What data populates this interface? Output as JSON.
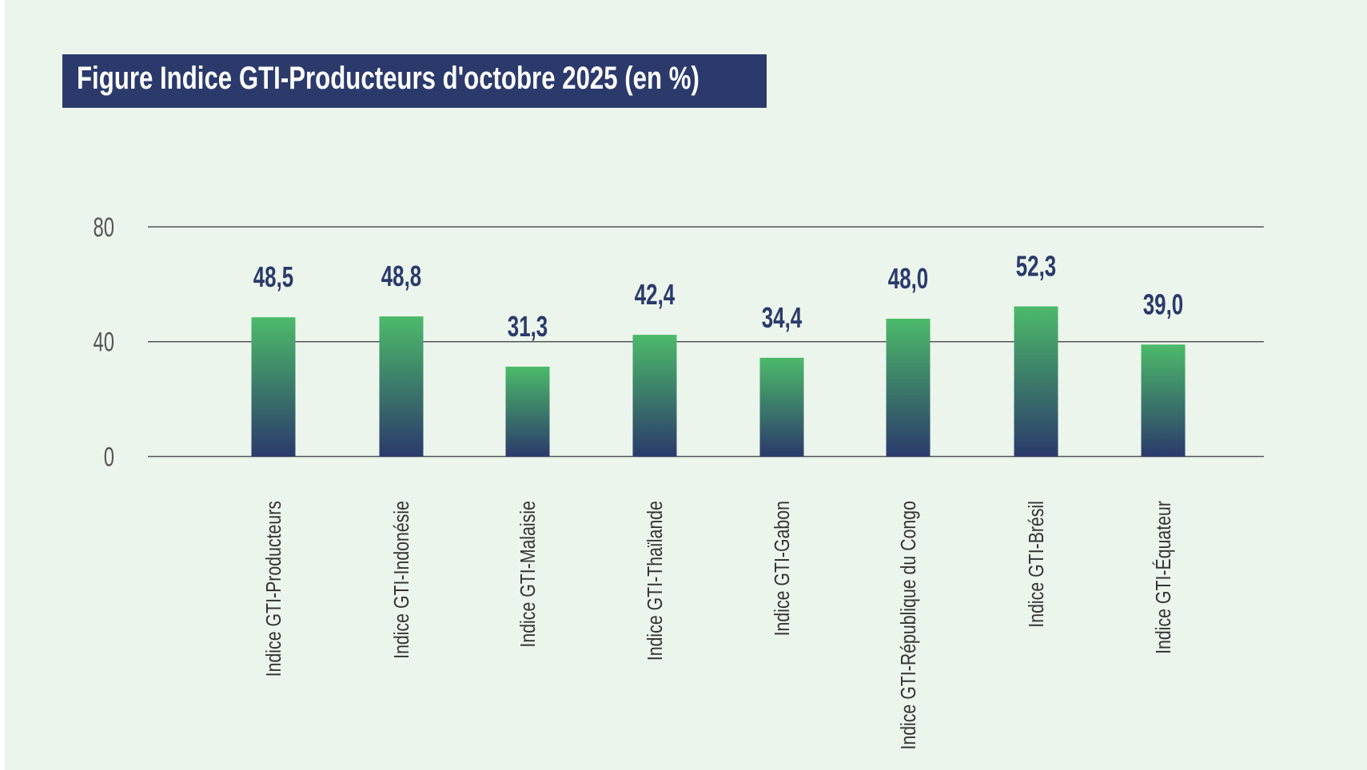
{
  "chart_data": {
    "type": "bar",
    "title": "Figure Indice GTI-Producteurs  d'octobre 2025 (en %)",
    "categories": [
      "Indice GTI-Producteurs",
      "Indice GTI-Indonésie",
      "Indice GTI-Malaisie",
      "Indice GTI-Thaïlande",
      "Indice GTI-Gabon",
      "Indice GTI-République du Congo",
      "Indice GTI-Brésil",
      "Indice GTI-Équateur"
    ],
    "values": [
      48.5,
      48.8,
      31.3,
      42.4,
      34.4,
      48.0,
      52.3,
      39.0
    ],
    "value_labels": [
      "48,5",
      "48,8",
      "31,3",
      "42,4",
      "34,4",
      "48,0",
      "52,3",
      "39,0"
    ],
    "yticks": [
      "0",
      "40",
      "80"
    ],
    "ytick_values": [
      0,
      40,
      80
    ],
    "ylim": [
      0,
      80
    ],
    "grid": true,
    "xlabel": "",
    "ylabel": "",
    "colors": {
      "bar_top": "#4cba6a",
      "bar_bottom": "#2b3a6b",
      "label": "#2b3a6b",
      "title_bg": "#2b3a6b"
    }
  }
}
